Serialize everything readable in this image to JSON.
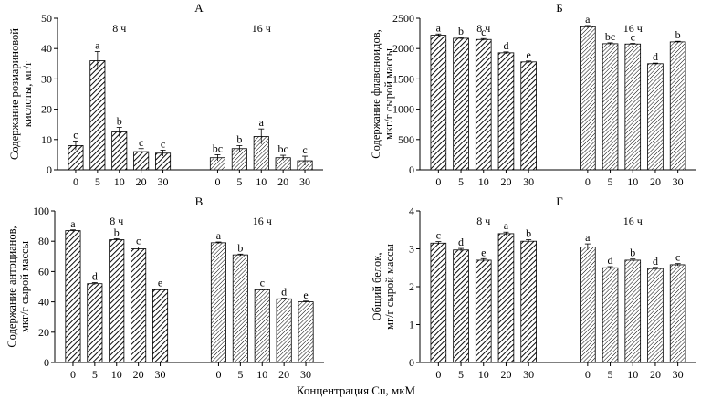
{
  "figure_xlabel": "Концентрация Cu, мкМ",
  "colors": {
    "ink": "#000000",
    "background": "#ffffff"
  },
  "chart_data": [
    {
      "id": "A",
      "type": "bar",
      "title": "А",
      "ylabel": [
        "Содержание розмариновой",
        "кислоты, мг/г"
      ],
      "ylim": [
        0,
        50
      ],
      "yticks": [
        0,
        10,
        20,
        30,
        40,
        50
      ],
      "categories": [
        "0",
        "5",
        "10",
        "20",
        "30"
      ],
      "groups": [
        {
          "label": "8 ч",
          "values": [
            8,
            36,
            12.5,
            6,
            5.5
          ],
          "errors": [
            1.5,
            3,
            1.5,
            1,
            1
          ],
          "letters": [
            "c",
            "a",
            "b",
            "c",
            "c"
          ]
        },
        {
          "label": "16 ч",
          "values": [
            4,
            7,
            11,
            4,
            3
          ],
          "errors": [
            1,
            1,
            2.5,
            0.8,
            1.5
          ],
          "letters": [
            "bc",
            "b",
            "a",
            "bc",
            "c"
          ]
        }
      ]
    },
    {
      "id": "B",
      "type": "bar",
      "title": "Б",
      "ylabel": [
        "Содержание флавоноидов,",
        "мкг/г сырой массы"
      ],
      "ylim": [
        0,
        2500
      ],
      "yticks": [
        0,
        500,
        1000,
        1500,
        2000,
        2500
      ],
      "categories": [
        "0",
        "5",
        "10",
        "20",
        "30"
      ],
      "groups": [
        {
          "label": "8 ч",
          "values": [
            2220,
            2170,
            2150,
            1930,
            1780
          ],
          "errors": [
            20,
            15,
            15,
            15,
            15
          ],
          "letters": [
            "a",
            "b",
            "c",
            "d",
            "e"
          ]
        },
        {
          "label": "16 ч",
          "values": [
            2360,
            2080,
            2075,
            1750,
            2110
          ],
          "errors": [
            20,
            15,
            10,
            10,
            10
          ],
          "letters": [
            "a",
            "bc",
            "c",
            "d",
            "b"
          ]
        }
      ]
    },
    {
      "id": "C",
      "type": "bar",
      "title": "В",
      "ylabel": [
        "Содержание антоцианов,",
        "мкг/г сырой массы"
      ],
      "ylim": [
        0,
        100
      ],
      "yticks": [
        0,
        20,
        40,
        60,
        80,
        100
      ],
      "categories": [
        "0",
        "5",
        "10",
        "20",
        "30"
      ],
      "groups": [
        {
          "label": "8 ч",
          "values": [
            87,
            52,
            81,
            75,
            48
          ],
          "errors": [
            0.5,
            0.7,
            0.7,
            1.2,
            0.5
          ],
          "letters": [
            "a",
            "d",
            "b",
            "c",
            "e"
          ]
        },
        {
          "label": "16 ч",
          "values": [
            79,
            71,
            48,
            42,
            40
          ],
          "errors": [
            0.5,
            0.5,
            0.5,
            0.5,
            0.5
          ],
          "letters": [
            "a",
            "b",
            "c",
            "d",
            "e"
          ]
        }
      ]
    },
    {
      "id": "D",
      "type": "bar",
      "title": "Г",
      "ylabel": [
        "Общий белок,",
        "мг/г сырой массы"
      ],
      "ylim": [
        0,
        4
      ],
      "yticks": [
        0,
        1,
        2,
        3,
        4
      ],
      "categories": [
        "0",
        "5",
        "10",
        "20",
        "30"
      ],
      "groups": [
        {
          "label": "8 ч",
          "values": [
            3.15,
            2.97,
            2.7,
            3.4,
            3.2
          ],
          "errors": [
            0.04,
            0.04,
            0.04,
            0.04,
            0.04
          ],
          "letters": [
            "c",
            "d",
            "e",
            "a",
            "b"
          ]
        },
        {
          "label": "16 ч",
          "values": [
            3.05,
            2.5,
            2.7,
            2.48,
            2.58
          ],
          "errors": [
            0.08,
            0.03,
            0.03,
            0.03,
            0.03
          ],
          "letters": [
            "a",
            "d",
            "b",
            "d",
            "c"
          ]
        }
      ]
    }
  ]
}
